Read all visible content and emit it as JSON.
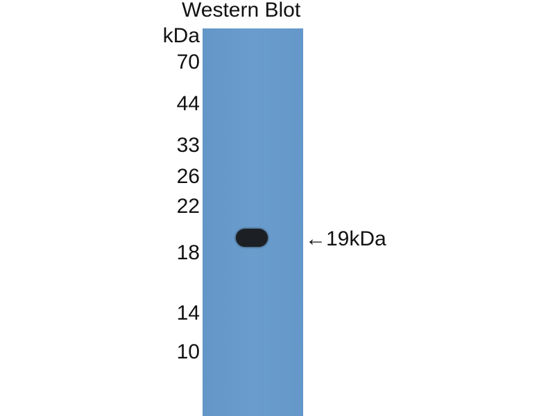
{
  "title": "Western Blot",
  "unit_label": "kDa",
  "markers": [
    "70",
    "44",
    "33",
    "26",
    "22",
    "18",
    "14",
    "10"
  ],
  "band_annotation": "←19kDa",
  "colors": {
    "membrane": "#6699cc",
    "band": "#1c2024"
  }
}
